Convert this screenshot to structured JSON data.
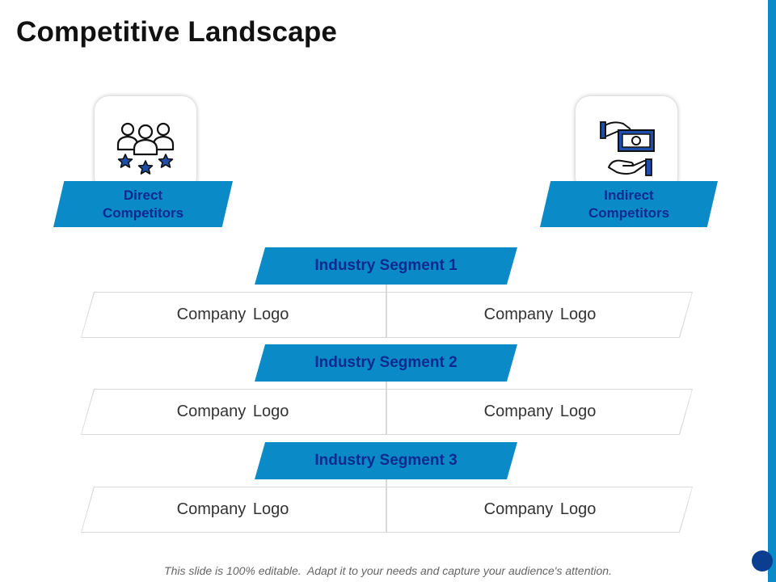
{
  "slide": {
    "title": "Competitive Landscape",
    "footer": "This slide is 100% editable.  Adapt it to your needs and capture your audience's attention."
  },
  "categories": {
    "direct": {
      "label": "Direct Competitors",
      "icon": "people-stars-icon"
    },
    "indirect": {
      "label": "Indirect Competitors",
      "icon": "hand-money-icon"
    }
  },
  "segments": [
    {
      "title": "Industry Segment 1",
      "left": "Company  Logo",
      "right": "Company  Logo"
    },
    {
      "title": "Industry Segment 2",
      "left": "Company  Logo",
      "right": "Company  Logo"
    },
    {
      "title": "Industry Segment 3",
      "left": "Company  Logo",
      "right": "Company  Logo"
    }
  ],
  "colors": {
    "accent_blue": "#0a8ac6",
    "banner_text": "#0b2a8f",
    "icon_blue": "#1f4ea8"
  }
}
